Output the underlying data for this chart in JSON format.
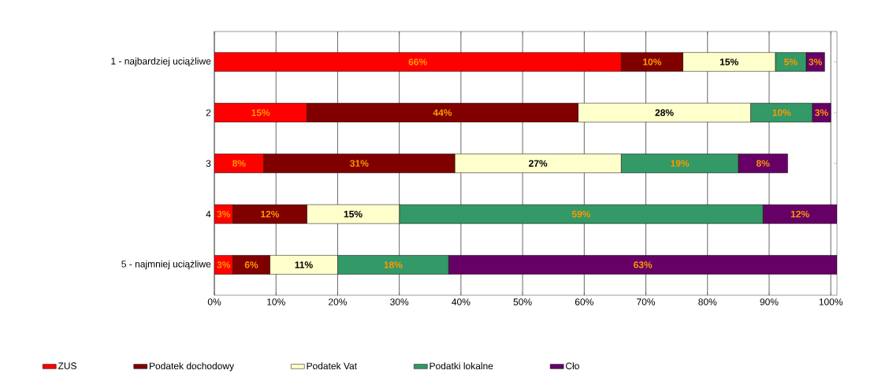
{
  "chart_data": {
    "type": "bar",
    "orientation": "horizontal",
    "stacked": true,
    "categories": [
      "1 - najbardziej uciążliwe",
      "2",
      "3",
      "4",
      "5 - najmniej uciążliwe"
    ],
    "series": [
      {
        "name": "ZUS",
        "color": "#ff0000",
        "values": [
          66,
          15,
          8,
          3,
          3
        ],
        "value_labels": [
          "66%",
          "15%",
          "8%",
          "3%",
          "3%"
        ]
      },
      {
        "name": "Podatek dochodowy",
        "color": "#800000",
        "values": [
          10,
          44,
          31,
          12,
          6
        ],
        "value_labels": [
          "10%",
          "44%",
          "31%",
          "12%",
          "6%"
        ]
      },
      {
        "name": "Podatek Vat",
        "color": "#ffffcc",
        "values": [
          15,
          28,
          27,
          15,
          11
        ],
        "value_labels": [
          "15%",
          "28%",
          "27%",
          "15%",
          "11%"
        ]
      },
      {
        "name": "Podatki lokalne",
        "color": "#339966",
        "values": [
          5,
          10,
          19,
          59,
          18
        ],
        "value_labels": [
          "5%",
          "10%",
          "19%",
          "59%",
          "18%"
        ]
      },
      {
        "name": "Cło",
        "color": "#660066",
        "values": [
          3,
          3,
          8,
          12,
          63
        ],
        "value_labels": [
          "3%",
          "3%",
          "8%",
          "12%",
          "63%"
        ]
      }
    ],
    "xlim": [
      0,
      101
    ],
    "xticks": [
      {
        "value": 0,
        "label": "0%"
      },
      {
        "value": 10,
        "label": "10%"
      },
      {
        "value": 20,
        "label": "20%"
      },
      {
        "value": 30,
        "label": "30%"
      },
      {
        "value": 40,
        "label": "40%"
      },
      {
        "value": 50,
        "label": "50%"
      },
      {
        "value": 60,
        "label": "60%"
      },
      {
        "value": 70,
        "label": "70%"
      },
      {
        "value": 80,
        "label": "80%"
      },
      {
        "value": 90,
        "label": "90%"
      },
      {
        "value": 100,
        "label": "100%"
      }
    ],
    "grid": "x",
    "legend": "bottom"
  }
}
